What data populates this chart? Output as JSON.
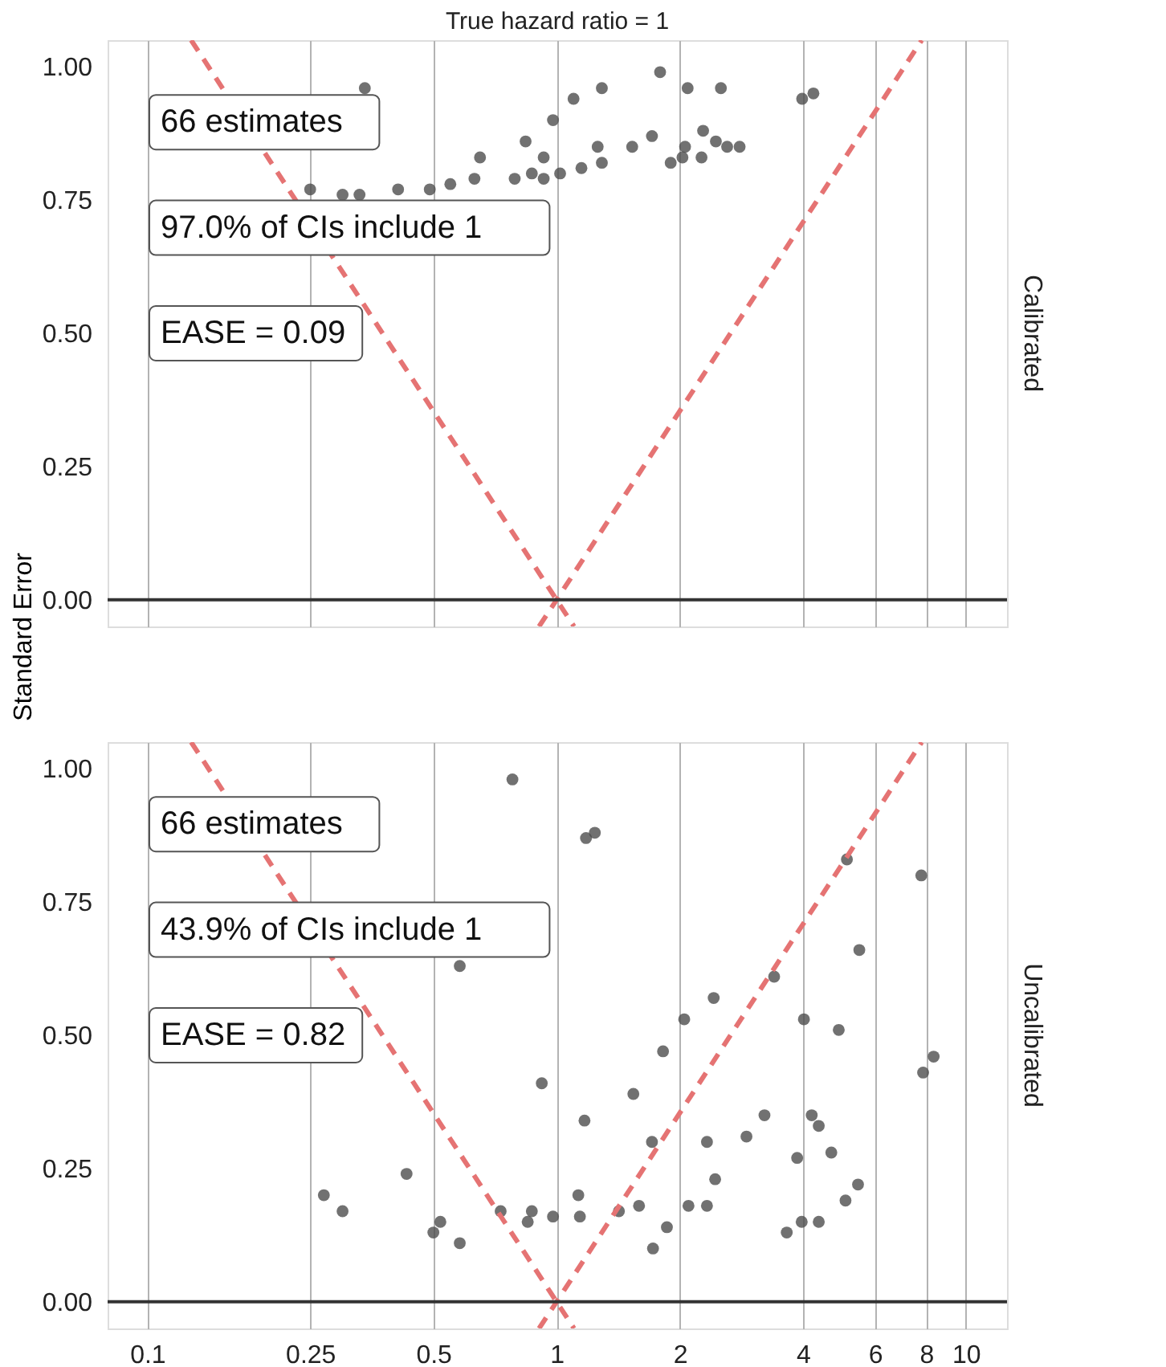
{
  "chart_data": [
    {
      "type": "scatter",
      "title": "True hazard ratio = 1",
      "ylabel": "Standard Error",
      "y2label": "Calibrated",
      "annotations": [
        "66 estimates",
        "97.0% of CIs include 1",
        "EASE = 0.09"
      ],
      "xlim": [
        0.08,
        12.6
      ],
      "xticks": [
        0.1,
        0.25,
        0.5,
        1,
        2,
        4,
        6,
        8,
        10
      ],
      "log": "x",
      "ylim": [
        -0.05,
        1.05
      ],
      "yticks": [
        {
          "value": 0,
          "label": "0.00"
        },
        {
          "value": 0.25,
          "label": "0.25"
        },
        {
          "value": 0.5,
          "label": "0.50"
        },
        {
          "value": 0.75,
          "label": "0.75"
        },
        {
          "value": 1,
          "label": "1.00"
        }
      ],
      "grid": "x",
      "tick_labels": "y",
      "ref_lines": [
        {
          "axis": "y",
          "value": 0,
          "color": "#333333"
        }
      ],
      "series": [
        {
          "marker": "circle",
          "color": "#4d4d4d",
          "x": [
            0.34,
            1.79,
            2.09,
            2.52,
            1.29,
            1.1,
            0.98,
            0.84,
            0.93,
            0.65,
            3.98,
            4.24,
            1.71,
            1.53,
            1.26,
            1.29,
            1.15,
            2.28,
            2.06,
            2.45,
            2.61,
            2.8,
            2.26,
            1.9,
            2.03,
            1.02,
            0.93,
            0.87,
            0.79,
            0.63,
            0.55,
            0.49,
            0.41,
            0.33,
            0.3,
            0.25
          ],
          "values": [
            0.96,
            0.99,
            0.96,
            0.96,
            0.96,
            0.94,
            0.9,
            0.86,
            0.83,
            0.83,
            0.94,
            0.95,
            0.87,
            0.85,
            0.85,
            0.82,
            0.81,
            0.88,
            0.85,
            0.86,
            0.85,
            0.85,
            0.83,
            0.82,
            0.83,
            0.8,
            0.79,
            0.8,
            0.79,
            0.79,
            0.78,
            0.77,
            0.77,
            0.76,
            0.76,
            0.77
          ]
        },
        {
          "type": "line",
          "color": "#e57373",
          "line_style": "dashed",
          "x": [
            0.128,
            1,
            1.103
          ],
          "values": [
            1.05,
            0,
            -0.05
          ]
        },
        {
          "type": "line",
          "color": "#e57373",
          "line_style": "dashed",
          "x": [
            0.906,
            1,
            7.8
          ],
          "values": [
            -0.05,
            0,
            1.05
          ]
        }
      ]
    },
    {
      "type": "scatter",
      "y2label": "Uncalibrated",
      "annotations": [
        "66 estimates",
        "43.9% of CIs include 1",
        "EASE = 0.82"
      ],
      "xlim": [
        0.08,
        12.6
      ],
      "xticks": [
        0.1,
        0.25,
        0.5,
        1,
        2,
        4,
        6,
        8,
        10
      ],
      "log": "x",
      "ylim": [
        -0.05,
        1.05
      ],
      "yticks": [
        {
          "value": 0,
          "label": "0.00"
        },
        {
          "value": 0.25,
          "label": "0.25"
        },
        {
          "value": 0.5,
          "label": "0.50"
        },
        {
          "value": 0.75,
          "label": "0.75"
        },
        {
          "value": 1,
          "label": "1.00"
        }
      ],
      "grid": "x",
      "ref_lines": [
        {
          "axis": "y",
          "value": 0,
          "color": "#333333"
        }
      ],
      "series": [
        {
          "marker": "circle",
          "color": "#4d4d4d",
          "x": [
            0.78,
            1.24,
            1.18,
            5.12,
            7.78,
            0.58,
            5.49,
            3.4,
            2.42,
            2.05,
            4.02,
            4.89,
            1.82,
            0.92,
            1.54,
            3.22,
            2.91,
            1.17,
            4.2,
            4.37,
            4.69,
            3.87,
            2.33,
            1.71,
            2.44,
            5.45,
            5.08,
            7.86,
            8.34,
            0.43,
            0.27,
            0.3,
            0.52,
            0.5,
            0.58,
            0.73,
            0.87,
            0.85,
            0.98,
            1.13,
            1.14,
            1.42,
            1.59,
            1.72,
            1.86,
            2.1,
            2.33,
            3.65,
            3.97,
            4.37
          ],
          "values": [
            0.98,
            0.88,
            0.87,
            0.83,
            0.8,
            0.63,
            0.66,
            0.61,
            0.57,
            0.53,
            0.53,
            0.51,
            0.47,
            0.41,
            0.39,
            0.35,
            0.31,
            0.34,
            0.35,
            0.33,
            0.28,
            0.27,
            0.3,
            0.3,
            0.23,
            0.22,
            0.19,
            0.43,
            0.46,
            0.24,
            0.2,
            0.17,
            0.15,
            0.13,
            0.11,
            0.17,
            0.17,
            0.15,
            0.16,
            0.2,
            0.16,
            0.17,
            0.18,
            0.1,
            0.14,
            0.18,
            0.18,
            0.13,
            0.15,
            0.15
          ]
        },
        {
          "type": "line",
          "color": "#e57373",
          "line_style": "dashed",
          "x": [
            0.128,
            1,
            1.103
          ],
          "values": [
            1.05,
            0,
            -0.05
          ]
        },
        {
          "type": "line",
          "color": "#e57373",
          "line_style": "dashed",
          "x": [
            0.906,
            1,
            7.8
          ],
          "values": [
            -0.05,
            0,
            1.05
          ]
        }
      ]
    }
  ]
}
